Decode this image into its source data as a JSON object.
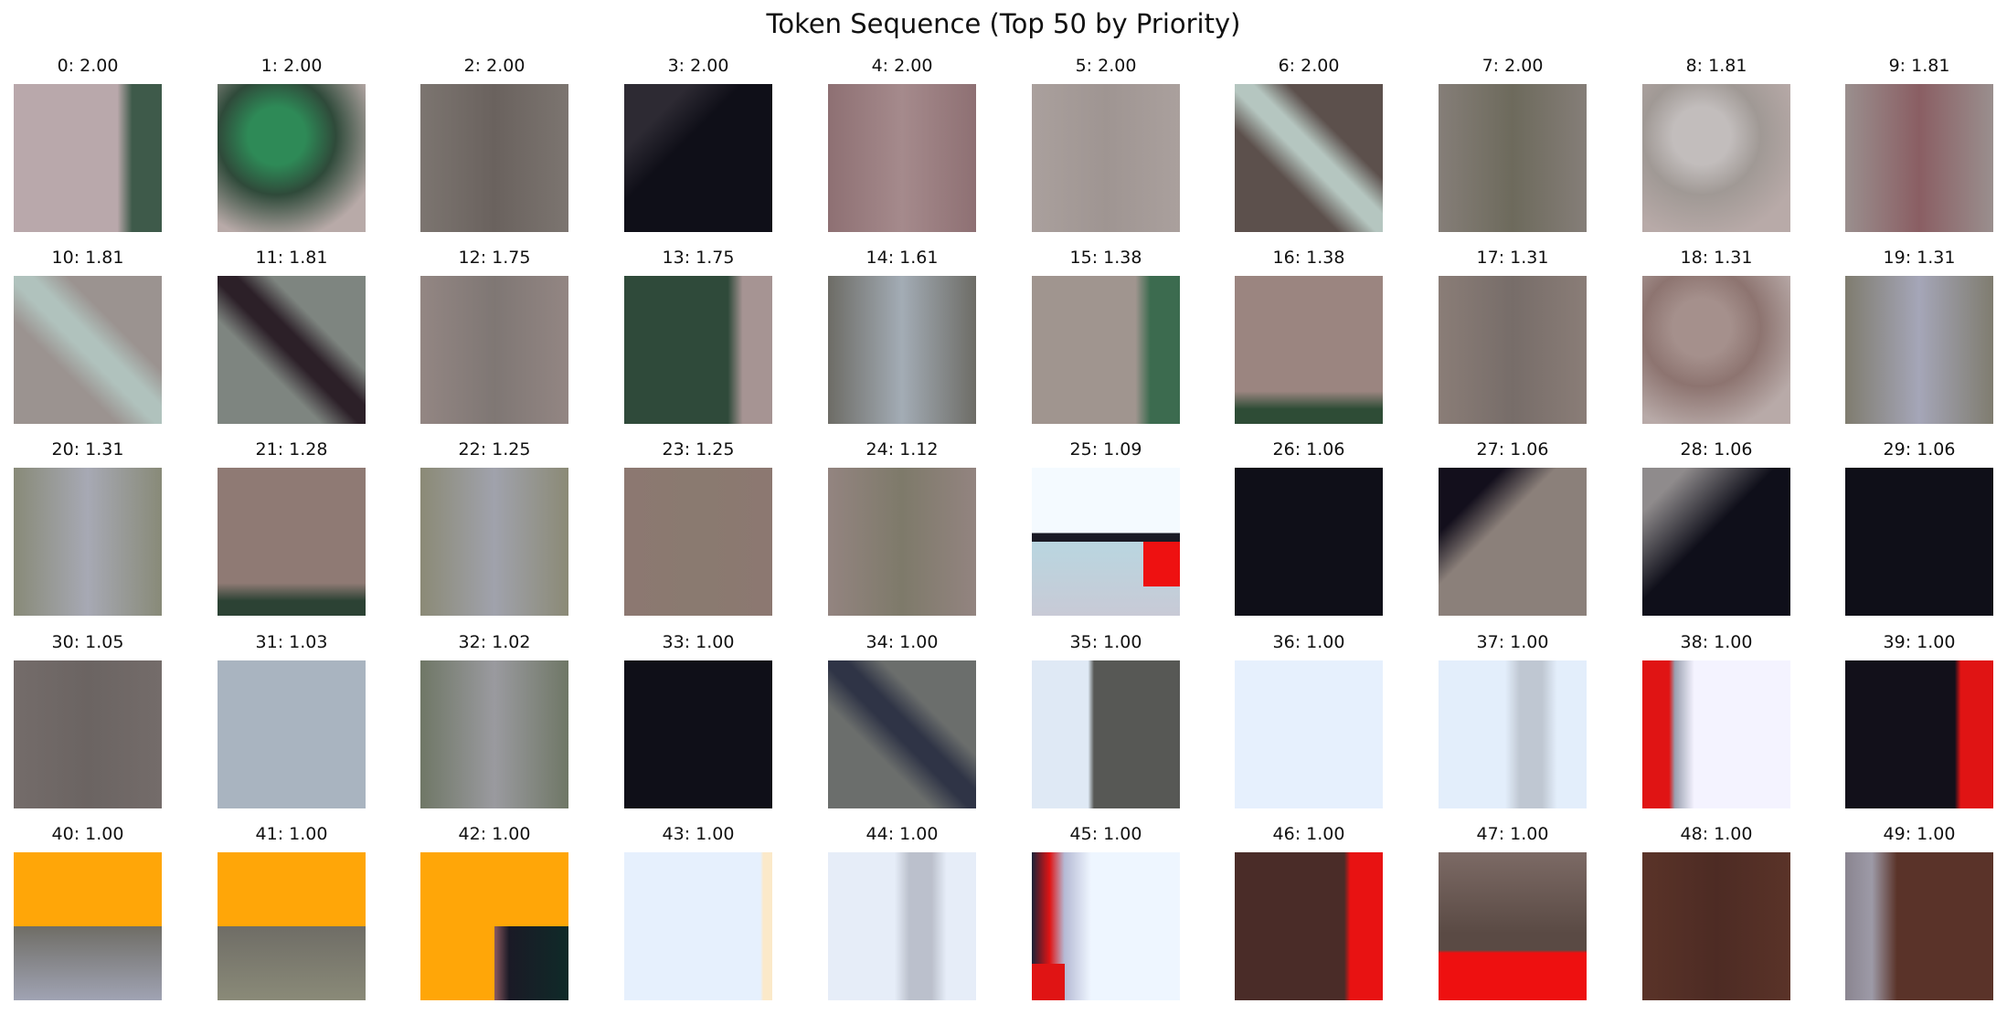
{
  "title": "Token Sequence (Top 50 by Priority)",
  "tiles": [
    {
      "label": "0: 2.00",
      "colors": [
        "#b9a8ab",
        "#3e5a4a"
      ],
      "style": 0
    },
    {
      "label": "1: 2.00",
      "colors": [
        "#2f4a3a",
        "#2e8a57"
      ],
      "style": 1
    },
    {
      "label": "2: 2.00",
      "colors": [
        "#7c7570",
        "#6a625e"
      ],
      "style": 2
    },
    {
      "label": "3: 2.00",
      "colors": [
        "#0f0f18",
        "#2d2a33"
      ],
      "style": 3
    },
    {
      "label": "4: 2.00",
      "colors": [
        "#8e7073",
        "#a58a8c"
      ],
      "style": 2
    },
    {
      "label": "5: 2.00",
      "colors": [
        "#aaa09d",
        "#9f9592"
      ],
      "style": 2
    },
    {
      "label": "6: 2.00",
      "colors": [
        "#5c504c",
        "#b5c6c0"
      ],
      "style": 4
    },
    {
      "label": "7: 2.00",
      "colors": [
        "#857e78",
        "#6d6a5c"
      ],
      "style": 2
    },
    {
      "label": "8: 1.81",
      "colors": [
        "#a09995",
        "#c2bdbc"
      ],
      "style": 1
    },
    {
      "label": "9: 1.81",
      "colors": [
        "#9a8f8e",
        "#8a5e63"
      ],
      "style": 2
    },
    {
      "label": "10: 1.81",
      "colors": [
        "#9b9390",
        "#b0c2bd"
      ],
      "style": 4
    },
    {
      "label": "11: 1.81",
      "colors": [
        "#7e8580",
        "#2c2028"
      ],
      "style": 4
    },
    {
      "label": "12: 1.75",
      "colors": [
        "#938683",
        "#7f7774"
      ],
      "style": 2
    },
    {
      "label": "13: 1.75",
      "colors": [
        "#2f4a3a",
        "#a69493"
      ],
      "style": 0
    },
    {
      "label": "14: 1.61",
      "colors": [
        "#6d6c66",
        "#a3acb5"
      ],
      "style": 2
    },
    {
      "label": "15: 1.38",
      "colors": [
        "#a0958f",
        "#3c6b4f"
      ],
      "style": 0
    },
    {
      "label": "16: 1.38",
      "colors": [
        "#9b8580",
        "#2e4c36"
      ],
      "style": 5
    },
    {
      "label": "17: 1.31",
      "colors": [
        "#8a7d77",
        "#776d69"
      ],
      "style": 2
    },
    {
      "label": "18: 1.31",
      "colors": [
        "#8d7470",
        "#a5908c"
      ],
      "style": 1
    },
    {
      "label": "19: 1.31",
      "colors": [
        "#7f7c6f",
        "#a5a6b8"
      ],
      "style": 2
    },
    {
      "label": "20: 1.31",
      "colors": [
        "#888a78",
        "#a7a9b4"
      ],
      "style": 2
    },
    {
      "label": "21: 1.28",
      "colors": [
        "#8f7a74",
        "#2c4234"
      ],
      "style": 5
    },
    {
      "label": "22: 1.25",
      "colors": [
        "#8b8a76",
        "#a0a2ac"
      ],
      "style": 2
    },
    {
      "label": "23: 1.25",
      "colors": [
        "#8c7871",
        "#8a7a70"
      ],
      "style": 2
    },
    {
      "label": "24: 1.12",
      "colors": [
        "#938480",
        "#7e7a6a"
      ],
      "style": 2
    },
    {
      "label": "25: 1.09",
      "colors": [
        "#f4faff",
        "#ee1111"
      ],
      "style": 6
    },
    {
      "label": "26: 1.06",
      "colors": [
        "#0f0f18",
        "#0f0f18"
      ],
      "style": 7
    },
    {
      "label": "27: 1.06",
      "colors": [
        "#8b807a",
        "#130f1c"
      ],
      "style": 3
    },
    {
      "label": "28: 1.06",
      "colors": [
        "#0f0f1a",
        "#8f8b8c"
      ],
      "style": 8
    },
    {
      "label": "29: 1.06",
      "colors": [
        "#0f0f18",
        "#0f0f18"
      ],
      "style": 7
    },
    {
      "label": "30: 1.05",
      "colors": [
        "#746c6a",
        "#6b6462"
      ],
      "style": 2
    },
    {
      "label": "31: 1.03",
      "colors": [
        "#a9b4c0",
        "#a9b4c0"
      ],
      "style": 7
    },
    {
      "label": "32: 1.02",
      "colors": [
        "#6f7766",
        "#9a9a9f"
      ],
      "style": 2
    },
    {
      "label": "33: 1.00",
      "colors": [
        "#0f0f18",
        "#0f0f18"
      ],
      "style": 7
    },
    {
      "label": "34: 1.00",
      "colors": [
        "#6b6e6c",
        "#2f3446"
      ],
      "style": 4
    },
    {
      "label": "35: 1.00",
      "colors": [
        "#dfe9f5",
        "#575855"
      ],
      "style": 9
    },
    {
      "label": "36: 1.00",
      "colors": [
        "#e6f0fd",
        "#e6f0fd"
      ],
      "style": 7
    },
    {
      "label": "37: 1.00",
      "colors": [
        "#e3eefb",
        "#bfc7d2"
      ],
      "style": 10
    },
    {
      "label": "38: 1.00",
      "colors": [
        "#f4f3ff",
        "#e01414"
      ],
      "style": 11
    },
    {
      "label": "39: 1.00",
      "colors": [
        "#12101a",
        "#e01414"
      ],
      "style": 12
    },
    {
      "label": "40: 1.00",
      "colors": [
        "#ffa608",
        "#a0a3b3"
      ],
      "style": 13
    },
    {
      "label": "41: 1.00",
      "colors": [
        "#ffa608",
        "#8a8a78"
      ],
      "style": 13
    },
    {
      "label": "42: 1.00",
      "colors": [
        "#ffa608",
        "#1a1a26"
      ],
      "style": 14
    },
    {
      "label": "43: 1.00",
      "colors": [
        "#e6f0fd",
        "#fbe9c9"
      ],
      "style": 15
    },
    {
      "label": "44: 1.00",
      "colors": [
        "#e6edf8",
        "#bbc0cc"
      ],
      "style": 10
    },
    {
      "label": "45: 1.00",
      "colors": [
        "#eef6ff",
        "#e01414"
      ],
      "style": 16
    },
    {
      "label": "46: 1.00",
      "colors": [
        "#4a2c28",
        "#e81212"
      ],
      "style": 12
    },
    {
      "label": "47: 1.00",
      "colors": [
        "#7c6a65",
        "#ee1010"
      ],
      "style": 17
    },
    {
      "label": "48: 1.00",
      "colors": [
        "#5a3328",
        "#4d2b24"
      ],
      "style": 2
    },
    {
      "label": "49: 1.00",
      "colors": [
        "#5a3329",
        "#9d9aa7"
      ],
      "style": 18
    }
  ]
}
